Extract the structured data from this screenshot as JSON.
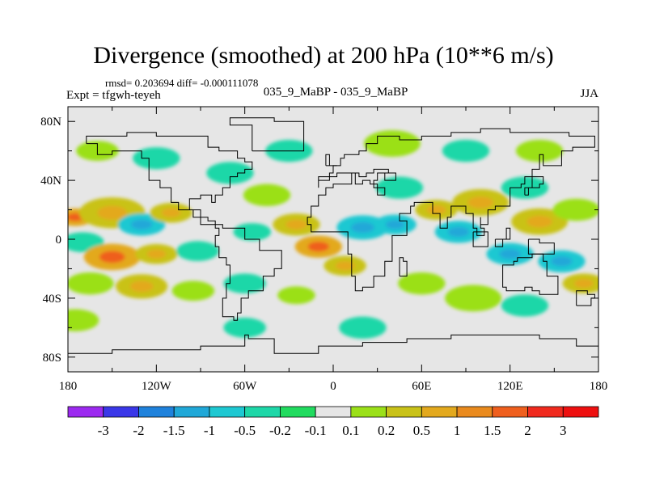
{
  "chart_data": {
    "type": "heatmap",
    "title": "Divergence (smoothed) at 200 hPa (10**6 m/s)",
    "stats_text": "rmsd= 0.203694 diff= -0.000111078",
    "left_label": "Expt = tfgwh-teyeh",
    "center_label": "035_9_MaBP - 035_9_MaBP",
    "right_label": "JJA",
    "xlim": [
      -180,
      180
    ],
    "ylim": [
      -90,
      90
    ],
    "x_ticks": [
      -180,
      -120,
      -60,
      0,
      60,
      120,
      180
    ],
    "x_tick_labels": [
      "180",
      "120W",
      "60W",
      "0",
      "60E",
      "120E",
      "180"
    ],
    "y_ticks": [
      80,
      40,
      0,
      -40,
      -80
    ],
    "y_tick_labels": [
      "80N",
      "40N",
      "0",
      "40S",
      "80S"
    ],
    "colorbar": {
      "labels": [
        "-3",
        "-2",
        "-1.5",
        "-1",
        "-0.5",
        "-0.2",
        "-0.1",
        "0.1",
        "0.2",
        "0.5",
        "1",
        "1.5",
        "2",
        "3"
      ],
      "colors": [
        "#9c2af0",
        "#3a37e8",
        "#1f82dc",
        "#20a8d8",
        "#1ec8d2",
        "#1ed7a8",
        "#21db5f",
        "#e6e6e6",
        "#9be019",
        "#c9c219",
        "#e3a91e",
        "#e98a1e",
        "#ef5f1e",
        "#f02a1e",
        "#ee1010"
      ]
    },
    "land_mask_color": "#e6e6e6",
    "blobs": [
      {
        "lon": -175,
        "lat": 15,
        "r": 8,
        "v": 1
      },
      {
        "lon": -150,
        "lat": 18,
        "r": 14,
        "v": 0.5
      },
      {
        "lon": -130,
        "lat": 10,
        "r": 10,
        "v": -0.5
      },
      {
        "lon": -110,
        "lat": 18,
        "r": 9,
        "v": 0.5
      },
      {
        "lon": -170,
        "lat": -2,
        "r": 9,
        "v": -0.2
      },
      {
        "lon": -150,
        "lat": -12,
        "r": 12,
        "v": 1
      },
      {
        "lon": -120,
        "lat": -10,
        "r": 9,
        "v": 0.5
      },
      {
        "lon": -92,
        "lat": -8,
        "r": 9,
        "v": -0.2
      },
      {
        "lon": -165,
        "lat": -30,
        "r": 10,
        "v": 0.2
      },
      {
        "lon": -130,
        "lat": -32,
        "r": 11,
        "v": 0.5
      },
      {
        "lon": -95,
        "lat": -35,
        "r": 9,
        "v": 0.2
      },
      {
        "lon": -60,
        "lat": -30,
        "r": 9,
        "v": -0.2
      },
      {
        "lon": -25,
        "lat": -38,
        "r": 8,
        "v": 0.2
      },
      {
        "lon": -120,
        "lat": 55,
        "r": 10,
        "v": -0.2
      },
      {
        "lon": -70,
        "lat": 45,
        "r": 10,
        "v": -0.2
      },
      {
        "lon": -45,
        "lat": 30,
        "r": 10,
        "v": 0.2
      },
      {
        "lon": -55,
        "lat": 5,
        "r": 8,
        "v": -0.2
      },
      {
        "lon": -25,
        "lat": 10,
        "r": 10,
        "v": 0.5
      },
      {
        "lon": -10,
        "lat": -5,
        "r": 10,
        "v": 1
      },
      {
        "lon": 8,
        "lat": -18,
        "r": 9,
        "v": 0.5
      },
      {
        "lon": 20,
        "lat": 8,
        "r": 11,
        "v": -0.5
      },
      {
        "lon": 42,
        "lat": 10,
        "r": 9,
        "v": -0.5
      },
      {
        "lon": 45,
        "lat": 35,
        "r": 10,
        "v": -0.2
      },
      {
        "lon": 70,
        "lat": 20,
        "r": 9,
        "v": 0.5
      },
      {
        "lon": 85,
        "lat": 5,
        "r": 10,
        "v": -0.5
      },
      {
        "lon": 100,
        "lat": 25,
        "r": 12,
        "v": 0.5
      },
      {
        "lon": 130,
        "lat": 35,
        "r": 10,
        "v": -0.2
      },
      {
        "lon": 140,
        "lat": 12,
        "r": 12,
        "v": 0.5
      },
      {
        "lon": 165,
        "lat": 20,
        "r": 10,
        "v": 0.2
      },
      {
        "lon": 120,
        "lat": -10,
        "r": 10,
        "v": -0.5
      },
      {
        "lon": 155,
        "lat": -15,
        "r": 10,
        "v": -0.5
      },
      {
        "lon": 170,
        "lat": -30,
        "r": 9,
        "v": 0.5
      },
      {
        "lon": 60,
        "lat": -30,
        "r": 10,
        "v": 0.2
      },
      {
        "lon": 95,
        "lat": -40,
        "r": 12,
        "v": 0.2
      },
      {
        "lon": 130,
        "lat": -45,
        "r": 10,
        "v": -0.2
      },
      {
        "lon": -160,
        "lat": 60,
        "r": 9,
        "v": 0.2
      },
      {
        "lon": 40,
        "lat": 65,
        "r": 12,
        "v": 0.2
      },
      {
        "lon": 90,
        "lat": 60,
        "r": 10,
        "v": -0.2
      },
      {
        "lon": 140,
        "lat": 60,
        "r": 10,
        "v": 0.2
      },
      {
        "lon": -30,
        "lat": 60,
        "r": 10,
        "v": -0.2
      },
      {
        "lon": -175,
        "lat": -55,
        "r": 10,
        "v": 0.2
      },
      {
        "lon": -60,
        "lat": -60,
        "r": 9,
        "v": -0.2
      },
      {
        "lon": 20,
        "lat": -60,
        "r": 10,
        "v": -0.2
      }
    ]
  }
}
